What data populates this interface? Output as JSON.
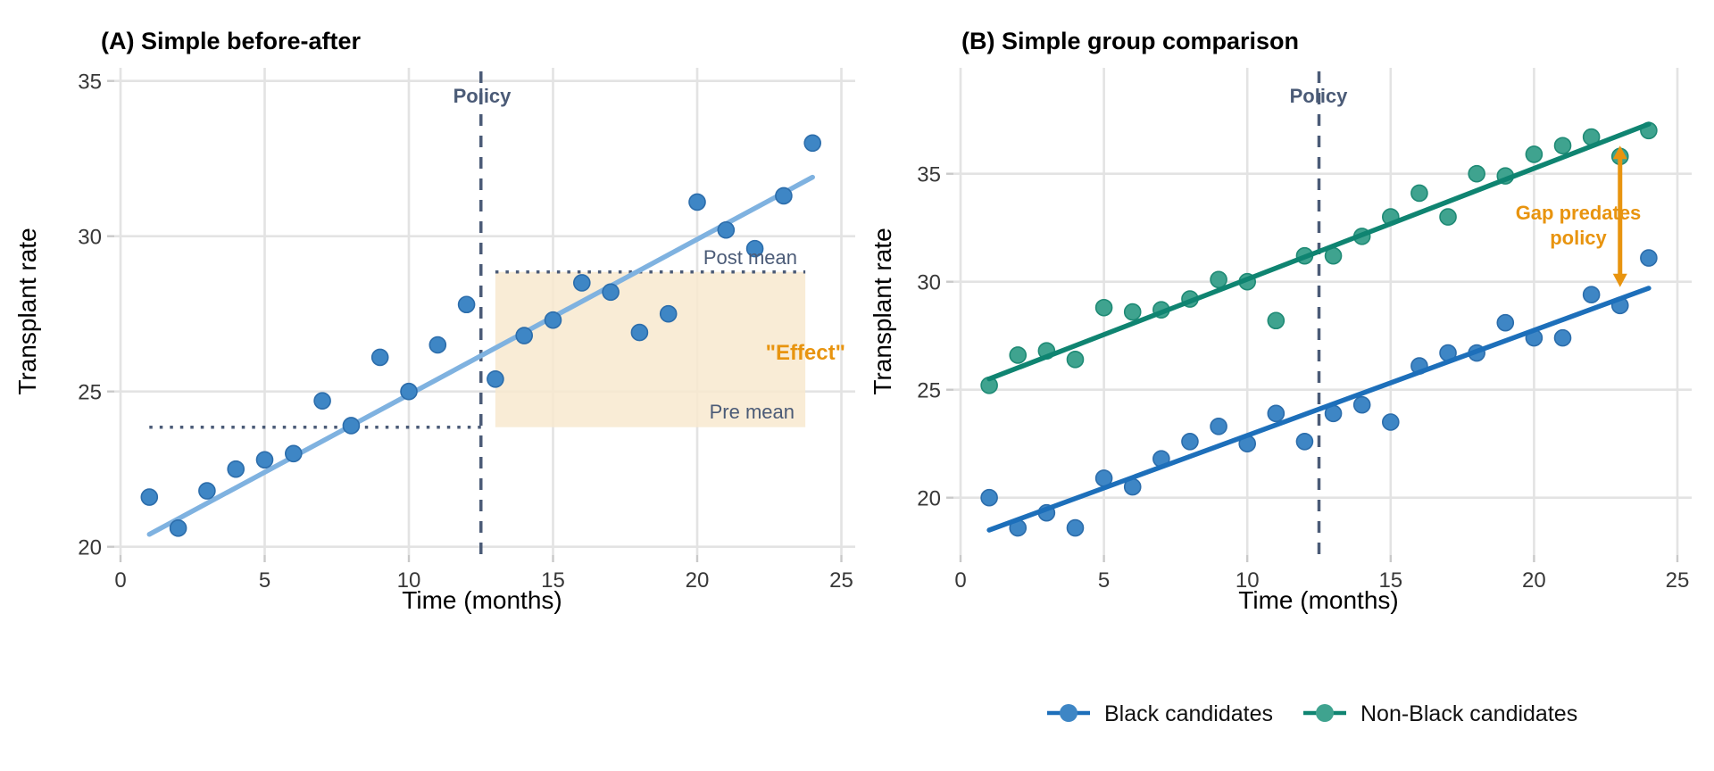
{
  "colors": {
    "blue_point": "#3e86c5",
    "blue_point_edge": "#2c6dab",
    "light_blue_trend": "#7fb2e0",
    "dark_blue_trend": "#1d6fba",
    "green_point": "#3fa38f",
    "green_point_edge": "#1f8a75",
    "green_trend": "#0f8471",
    "slate": "#4b5b77",
    "orange": "#e8940f",
    "grid": "#e3e3e3",
    "tick": "#c9c9c9",
    "effect_fill": "#f8e9cf"
  },
  "chart_data": [
    {
      "id": "A",
      "type": "scatter",
      "title": "(A) Simple before-after",
      "xlabel": "Time (months)",
      "ylabel": "Transplant rate",
      "x_ticks": [
        0,
        5,
        10,
        15,
        20,
        25
      ],
      "y_ticks": [
        20,
        25,
        30,
        35
      ],
      "xlim": [
        -0.2,
        25.5
      ],
      "ylim": [
        19.7,
        35.5
      ],
      "grid": true,
      "x": [
        1,
        2,
        3,
        4,
        5,
        6,
        7,
        8,
        9,
        10,
        11,
        12,
        13,
        14,
        15,
        16,
        17,
        18,
        19,
        20,
        21,
        22,
        23,
        24
      ],
      "series": [
        {
          "name": "Transplant rate",
          "point_color": "#3e86c5",
          "point_edge": "#2c6dab",
          "values": [
            21.6,
            20.6,
            21.8,
            22.5,
            22.8,
            23.0,
            24.7,
            23.9,
            26.1,
            25.0,
            26.5,
            27.8,
            25.4,
            26.8,
            27.3,
            28.5,
            28.2,
            26.9,
            27.5,
            31.1,
            30.2,
            29.6,
            31.3,
            33.0
          ],
          "trend": {
            "color": "#7fb2e0",
            "x1": 1,
            "y1": 20.4,
            "x2": 24,
            "y2": 31.9
          }
        }
      ],
      "policy": {
        "x": 12.5,
        "label": "Policy"
      },
      "pre_mean": {
        "value": 23.85,
        "label": "Pre mean",
        "x1": 1,
        "x2": 12.5
      },
      "post_mean": {
        "value": 28.85,
        "label": "Post mean",
        "x1": 13,
        "x2": 23.75
      },
      "effect": {
        "label": "\"Effect\"",
        "x1": 13,
        "x2": 23.75,
        "y1": 23.85,
        "y2": 28.85,
        "fill": "#f8e9cf"
      }
    },
    {
      "id": "B",
      "type": "scatter",
      "title": "(B) Simple group comparison",
      "xlabel": "Time (months)",
      "ylabel": "Transplant rate",
      "x_ticks": [
        0,
        5,
        10,
        15,
        20,
        25
      ],
      "y_ticks": [
        20,
        25,
        30,
        35
      ],
      "xlim": [
        -0.2,
        25.5
      ],
      "ylim": [
        17.4,
        39.8
      ],
      "grid": true,
      "x": [
        1,
        2,
        3,
        4,
        5,
        6,
        7,
        8,
        9,
        10,
        11,
        12,
        13,
        14,
        15,
        16,
        17,
        18,
        19,
        20,
        21,
        22,
        23,
        24
      ],
      "series": [
        {
          "name": "Black candidates",
          "point_color": "#3e86c5",
          "point_edge": "#2c6dab",
          "values": [
            20.0,
            18.6,
            19.3,
            18.6,
            20.9,
            20.5,
            21.8,
            22.6,
            23.3,
            22.5,
            23.9,
            22.6,
            23.9,
            24.3,
            23.5,
            26.1,
            26.7,
            26.7,
            28.1,
            27.4,
            27.4,
            29.4,
            28.9,
            31.1
          ],
          "trend": {
            "color": "#1d6fba",
            "x1": 1,
            "y1": 18.5,
            "x2": 24,
            "y2": 29.7
          }
        },
        {
          "name": "Non-Black candidates",
          "point_color": "#3fa38f",
          "point_edge": "#1f8a75",
          "values": [
            25.2,
            26.6,
            26.8,
            26.4,
            28.8,
            28.6,
            28.7,
            29.2,
            30.1,
            30.0,
            28.2,
            31.2,
            31.2,
            32.1,
            33.0,
            34.1,
            33.0,
            35.0,
            34.9,
            35.9,
            36.3,
            36.7,
            35.8,
            37.0
          ],
          "trend": {
            "color": "#0f8471",
            "x1": 1,
            "y1": 25.5,
            "x2": 24,
            "y2": 37.3
          }
        }
      ],
      "policy": {
        "x": 12.5,
        "label": "Policy"
      },
      "gap_arrow": {
        "x": 23,
        "y_top": 36.3,
        "y_bottom": 29.75,
        "label_line1": "Gap predates",
        "label_line2": "policy"
      }
    }
  ],
  "legend": {
    "items": [
      {
        "label": "Black candidates",
        "line_color": "#1d6fba",
        "point_color": "#3e86c5"
      },
      {
        "label": "Non-Black candidates",
        "line_color": "#0f8471",
        "point_color": "#3fa38f"
      }
    ]
  }
}
